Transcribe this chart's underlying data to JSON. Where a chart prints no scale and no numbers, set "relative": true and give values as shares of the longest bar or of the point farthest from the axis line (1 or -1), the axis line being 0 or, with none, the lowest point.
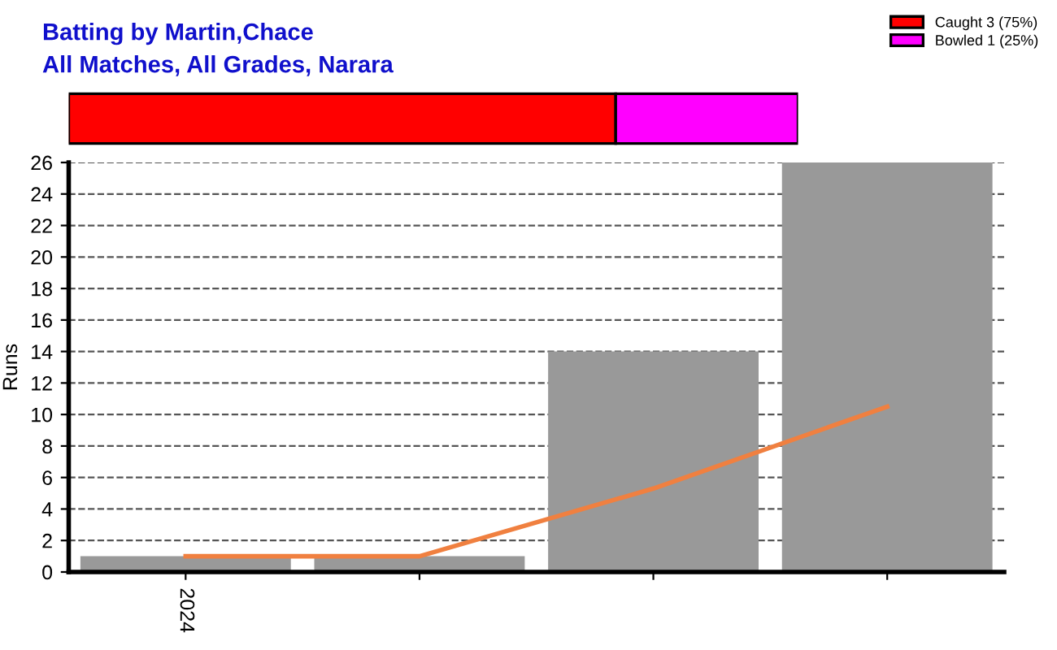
{
  "chart_data": [
    {
      "type": "bar",
      "title": "Batting by Martin,Chace",
      "subtitle": "All Matches, All Grades, Narara",
      "orientation": "horizontal",
      "stacked": true,
      "relative": true,
      "categories": [
        null
      ],
      "legend": "top right",
      "tick_labels": false,
      "series": [
        {
          "name": "Caught 3 (75%)",
          "color": "#ff0000",
          "values": [
            0.75
          ]
        },
        {
          "name": "Bowled 1 (25%)",
          "color": "#ff00ff",
          "values": [
            0.25
          ]
        }
      ]
    },
    {
      "type": "bar",
      "ylabel": "Runs",
      "categories": [
        "2024",
        null,
        null,
        null
      ],
      "ylim": [
        0,
        26
      ],
      "yticks": [
        0,
        2,
        4,
        6,
        8,
        10,
        12,
        14,
        16,
        18,
        20,
        22,
        24,
        26
      ],
      "grid": "y",
      "series": [
        {
          "type": "bar",
          "color": "#999999",
          "values": [
            1,
            1,
            14,
            26
          ]
        },
        {
          "type": "line",
          "color": "#f08040",
          "values": [
            1,
            1,
            5.3,
            10.5
          ]
        }
      ]
    }
  ]
}
